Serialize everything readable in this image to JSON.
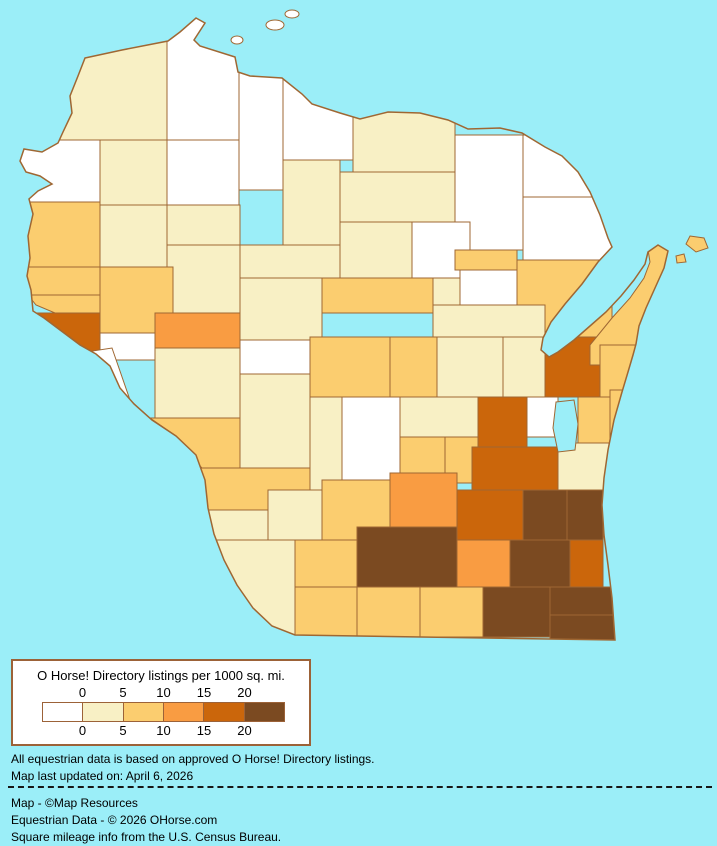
{
  "page": {
    "background_color": "#9BEEF8"
  },
  "map": {
    "water_color": "#9BEEF8",
    "border_color": "#9F6733",
    "regions": [
      {
        "id": "douglas",
        "level": 1
      },
      {
        "id": "bayfield",
        "level": 0
      },
      {
        "id": "ashland",
        "level": 0
      },
      {
        "id": "iron",
        "level": 0
      },
      {
        "id": "vilas",
        "level": 1
      },
      {
        "id": "forest",
        "level": 0
      },
      {
        "id": "florence",
        "level": 0
      },
      {
        "id": "marinette",
        "level": 0
      },
      {
        "id": "burnett-polk",
        "level": 0
      },
      {
        "id": "washburn",
        "level": 1
      },
      {
        "id": "sawyer",
        "level": 0
      },
      {
        "id": "price",
        "level": 1
      },
      {
        "id": "oneida",
        "level": 1
      },
      {
        "id": "st-croix",
        "level": 2
      },
      {
        "id": "barron",
        "level": 1
      },
      {
        "id": "rusk",
        "level": 1
      },
      {
        "id": "chippewa",
        "level": 1
      },
      {
        "id": "taylor",
        "level": 1
      },
      {
        "id": "lincoln",
        "level": 1
      },
      {
        "id": "langlade",
        "level": 0
      },
      {
        "id": "oconto",
        "level": 2
      },
      {
        "id": "oconto-nw",
        "level": 2
      },
      {
        "id": "shawano-nw",
        "level": 1
      },
      {
        "id": "shawano",
        "level": 1
      },
      {
        "id": "menominee",
        "level": 0
      },
      {
        "id": "marathon",
        "level": 2
      },
      {
        "id": "pierce",
        "level": 2
      },
      {
        "id": "pepin",
        "level": 2
      },
      {
        "id": "dunn-eau-claire",
        "level": 2
      },
      {
        "id": "clark",
        "level": 1
      },
      {
        "id": "buffalo",
        "level": 4
      },
      {
        "id": "white-river-gap",
        "level": 0
      },
      {
        "id": "trempealeau",
        "level": 0
      },
      {
        "id": "jackson",
        "level": 3
      },
      {
        "id": "monroe-a",
        "level": 1
      },
      {
        "id": "white-central",
        "level": 0
      },
      {
        "id": "monroe-b",
        "level": 1
      },
      {
        "id": "la-crosse",
        "level": 2
      },
      {
        "id": "vernon",
        "level": 2
      },
      {
        "id": "wood",
        "level": 2
      },
      {
        "id": "portage",
        "level": 2
      },
      {
        "id": "waupaca",
        "level": 1
      },
      {
        "id": "outagamie",
        "level": 1
      },
      {
        "id": "brown",
        "level": 4
      },
      {
        "id": "door",
        "level": 2
      },
      {
        "id": "kewaunee",
        "level": 2
      },
      {
        "id": "juneau",
        "level": 1
      },
      {
        "id": "adams",
        "level": 0
      },
      {
        "id": "waushara",
        "level": 1
      },
      {
        "id": "whitepatch-ne",
        "level": 0
      },
      {
        "id": "winnebago",
        "level": 4
      },
      {
        "id": "calumet",
        "level": 2
      },
      {
        "id": "manitowoc",
        "level": 2
      },
      {
        "id": "marquette",
        "level": 2
      },
      {
        "id": "green-lake",
        "level": 2
      },
      {
        "id": "fond-du-lac",
        "level": 4
      },
      {
        "id": "sheboygan",
        "level": 1
      },
      {
        "id": "crawford",
        "level": 1
      },
      {
        "id": "richland",
        "level": 1
      },
      {
        "id": "sauk",
        "level": 2
      },
      {
        "id": "columbia",
        "level": 3
      },
      {
        "id": "dodge",
        "level": 4
      },
      {
        "id": "washington",
        "level": 5
      },
      {
        "id": "ozaukee",
        "level": 5
      },
      {
        "id": "grant",
        "level": 1
      },
      {
        "id": "iowa",
        "level": 2
      },
      {
        "id": "dane",
        "level": 5
      },
      {
        "id": "jefferson",
        "level": 3
      },
      {
        "id": "waukesha",
        "level": 5
      },
      {
        "id": "milwaukee",
        "level": 4
      },
      {
        "id": "lafayette",
        "level": 2
      },
      {
        "id": "green",
        "level": 2
      },
      {
        "id": "rock",
        "level": 2
      },
      {
        "id": "walworth",
        "level": 5
      },
      {
        "id": "racine",
        "level": 5
      },
      {
        "id": "kenosha",
        "level": 5
      },
      {
        "id": "washington-island",
        "level": 2
      },
      {
        "id": "door-islet",
        "level": 2
      },
      {
        "id": "apostle-island-1",
        "level": 0
      },
      {
        "id": "apostle-island-2",
        "level": 0
      },
      {
        "id": "madeline-island",
        "level": 0
      }
    ]
  },
  "legend": {
    "title": "O Horse! Directory listings per 1000 sq. mi.",
    "ticks": [
      "0",
      "5",
      "10",
      "15",
      "20"
    ],
    "colors": [
      "#FFFFFF",
      "#F8F0C5",
      "#FBCD6F",
      "#F99C42",
      "#CB660B",
      "#7B4A21"
    ],
    "box_border_color": "#9C6238"
  },
  "notes": {
    "line1": "All equestrian data is based on approved O Horse! Directory listings.",
    "line2": "Map last updated on: April 6, 2026"
  },
  "credits": {
    "line1": "Map - ©Map Resources",
    "line2": "Equestrian Data - © 2026 OHorse.com",
    "line3": "Square mileage info from the U.S. Census Bureau."
  }
}
